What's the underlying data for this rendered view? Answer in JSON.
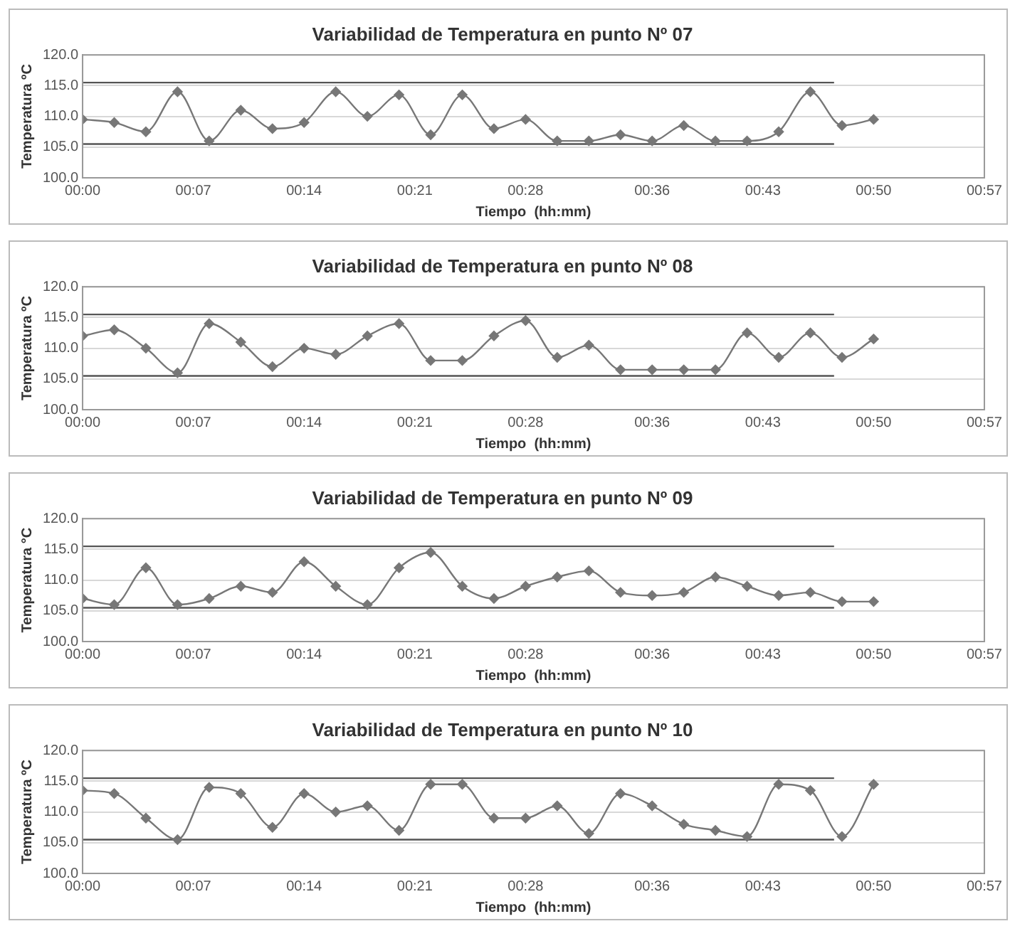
{
  "chart_data": [
    {
      "type": "line",
      "title": "Variabilidad de Temperatura en punto Nº 07",
      "xlabel": "Tiempo  (hh:mm)",
      "ylabel": "Temperatura ºC",
      "xlim": [
        0,
        57
      ],
      "xticks": [
        {
          "value": 0,
          "label": "00:00"
        },
        {
          "value": 7,
          "label": "00:07"
        },
        {
          "value": 14,
          "label": "00:14"
        },
        {
          "value": 21,
          "label": "00:21"
        },
        {
          "value": 28,
          "label": "00:28"
        },
        {
          "value": 36,
          "label": "00:36"
        },
        {
          "value": 43,
          "label": "00:43"
        },
        {
          "value": 50,
          "label": "00:50"
        },
        {
          "value": 57,
          "label": "00:57"
        }
      ],
      "ylim": [
        100,
        120
      ],
      "yticks": [
        {
          "value": 100,
          "label": "100.0"
        },
        {
          "value": 105,
          "label": "105.0"
        },
        {
          "value": 110,
          "label": "110.0"
        },
        {
          "value": 115,
          "label": "115.0"
        },
        {
          "value": 120,
          "label": "120.0"
        }
      ],
      "grid": "y",
      "legend": false,
      "marker": "diamond",
      "series": [
        {
          "color": "#777777",
          "x": [
            0,
            2,
            4,
            6,
            8,
            10,
            12,
            14,
            16,
            18,
            20,
            22,
            24,
            26,
            28,
            30,
            32,
            34,
            36,
            38,
            40,
            42,
            44,
            46,
            48,
            50
          ],
          "values": [
            109.5,
            109,
            107.5,
            114,
            106,
            111,
            108,
            109,
            114,
            110,
            113.5,
            107,
            113.5,
            108,
            109.5,
            106,
            106,
            107,
            106,
            108.5,
            106,
            106,
            107.5,
            114,
            108.5,
            109.5
          ]
        },
        {
          "color": "#555555",
          "marker": "none",
          "x": [
            0,
            47.5
          ],
          "values": [
            115.5,
            115.5
          ]
        },
        {
          "color": "#555555",
          "marker": "none",
          "x": [
            0,
            47.5
          ],
          "values": [
            105.5,
            105.5
          ]
        }
      ]
    },
    {
      "type": "line",
      "title": "Variabilidad de Temperatura en punto Nº 08",
      "xlabel": "Tiempo  (hh:mm)",
      "ylabel": "Temperatura ºC",
      "xlim": [
        0,
        57
      ],
      "xticks": [
        {
          "value": 0,
          "label": "00:00"
        },
        {
          "value": 7,
          "label": "00:07"
        },
        {
          "value": 14,
          "label": "00:14"
        },
        {
          "value": 21,
          "label": "00:21"
        },
        {
          "value": 28,
          "label": "00:28"
        },
        {
          "value": 36,
          "label": "00:36"
        },
        {
          "value": 43,
          "label": "00:43"
        },
        {
          "value": 50,
          "label": "00:50"
        },
        {
          "value": 57,
          "label": "00:57"
        }
      ],
      "ylim": [
        100,
        120
      ],
      "yticks": [
        {
          "value": 100,
          "label": "100.0"
        },
        {
          "value": 105,
          "label": "105.0"
        },
        {
          "value": 110,
          "label": "110.0"
        },
        {
          "value": 115,
          "label": "115.0"
        },
        {
          "value": 120,
          "label": "120.0"
        }
      ],
      "grid": "y",
      "legend": false,
      "marker": "diamond",
      "series": [
        {
          "color": "#777777",
          "x": [
            0,
            2,
            4,
            6,
            8,
            10,
            12,
            14,
            16,
            18,
            20,
            22,
            24,
            26,
            28,
            30,
            32,
            34,
            36,
            38,
            40,
            42,
            44,
            46,
            48,
            50
          ],
          "values": [
            112,
            113,
            110,
            106,
            114,
            111,
            107,
            110,
            109,
            112,
            114,
            108,
            108,
            112,
            114.5,
            108.5,
            110.5,
            106.5,
            106.5,
            106.5,
            106.5,
            112.5,
            108.5,
            112.5,
            108.5,
            111.5
          ]
        },
        {
          "color": "#555555",
          "marker": "none",
          "x": [
            0,
            47.5
          ],
          "values": [
            115.5,
            115.5
          ]
        },
        {
          "color": "#555555",
          "marker": "none",
          "x": [
            0,
            47.5
          ],
          "values": [
            105.5,
            105.5
          ]
        }
      ]
    },
    {
      "type": "line",
      "title": "Variabilidad de Temperatura en punto Nº 09",
      "xlabel": "Tiempo  (hh:mm)",
      "ylabel": "Temperatura °C",
      "xlim": [
        0,
        57
      ],
      "xticks": [
        {
          "value": 0,
          "label": "00:00"
        },
        {
          "value": 7,
          "label": "00:07"
        },
        {
          "value": 14,
          "label": "00:14"
        },
        {
          "value": 21,
          "label": "00:21"
        },
        {
          "value": 28,
          "label": "00:28"
        },
        {
          "value": 36,
          "label": "00:36"
        },
        {
          "value": 43,
          "label": "00:43"
        },
        {
          "value": 50,
          "label": "00:50"
        },
        {
          "value": 57,
          "label": "00:57"
        }
      ],
      "ylim": [
        100,
        120
      ],
      "yticks": [
        {
          "value": 100,
          "label": "100.0"
        },
        {
          "value": 105,
          "label": "105.0"
        },
        {
          "value": 110,
          "label": "110.0"
        },
        {
          "value": 115,
          "label": "115.0"
        },
        {
          "value": 120,
          "label": "120.0"
        }
      ],
      "grid": "y",
      "legend": false,
      "marker": "diamond",
      "series": [
        {
          "color": "#777777",
          "x": [
            0,
            2,
            4,
            6,
            8,
            10,
            12,
            14,
            16,
            18,
            20,
            22,
            24,
            26,
            28,
            30,
            32,
            34,
            36,
            38,
            40,
            42,
            44,
            46,
            48,
            50
          ],
          "values": [
            107,
            106,
            112,
            106,
            107,
            109,
            108,
            113,
            109,
            106,
            112,
            114.5,
            109,
            107,
            109,
            110.5,
            111.5,
            108,
            107.5,
            108,
            110.5,
            109,
            107.5,
            108,
            106.5,
            106.5
          ]
        },
        {
          "color": "#555555",
          "marker": "none",
          "x": [
            0,
            47.5
          ],
          "values": [
            115.5,
            115.5
          ]
        },
        {
          "color": "#555555",
          "marker": "none",
          "x": [
            0,
            47.5
          ],
          "values": [
            105.5,
            105.5
          ]
        }
      ]
    },
    {
      "type": "line",
      "title": "Variabilidad de Temperatura en punto Nº 10",
      "xlabel": "Tiempo  (hh:mm)",
      "ylabel": "Temperatura ºC",
      "xlim": [
        0,
        57
      ],
      "xticks": [
        {
          "value": 0,
          "label": "00:00"
        },
        {
          "value": 7,
          "label": "00:07"
        },
        {
          "value": 14,
          "label": "00:14"
        },
        {
          "value": 21,
          "label": "00:21"
        },
        {
          "value": 28,
          "label": "00:28"
        },
        {
          "value": 36,
          "label": "00:36"
        },
        {
          "value": 43,
          "label": "00:43"
        },
        {
          "value": 50,
          "label": "00:50"
        },
        {
          "value": 57,
          "label": "00:57"
        }
      ],
      "ylim": [
        100,
        120
      ],
      "yticks": [
        {
          "value": 100,
          "label": "100.0"
        },
        {
          "value": 105,
          "label": "105.0"
        },
        {
          "value": 110,
          "label": "110.0"
        },
        {
          "value": 115,
          "label": "115.0"
        },
        {
          "value": 120,
          "label": "120.0"
        }
      ],
      "grid": "y",
      "legend": false,
      "marker": "diamond",
      "series": [
        {
          "color": "#777777",
          "x": [
            0,
            2,
            4,
            6,
            8,
            10,
            12,
            14,
            16,
            18,
            20,
            22,
            24,
            26,
            28,
            30,
            32,
            34,
            36,
            38,
            40,
            42,
            44,
            46,
            48,
            50
          ],
          "values": [
            113.5,
            113,
            109,
            105.5,
            114,
            113,
            107.5,
            113,
            110,
            111,
            107,
            114.5,
            114.5,
            109,
            109,
            111,
            106.5,
            113,
            111,
            108,
            107,
            106,
            114.5,
            113.5,
            106,
            114.5
          ]
        },
        {
          "color": "#555555",
          "marker": "none",
          "x": [
            0,
            47.5
          ],
          "values": [
            115.5,
            115.5
          ]
        },
        {
          "color": "#555555",
          "marker": "none",
          "x": [
            0,
            47.5
          ],
          "values": [
            105.5,
            105.5
          ]
        }
      ]
    }
  ]
}
